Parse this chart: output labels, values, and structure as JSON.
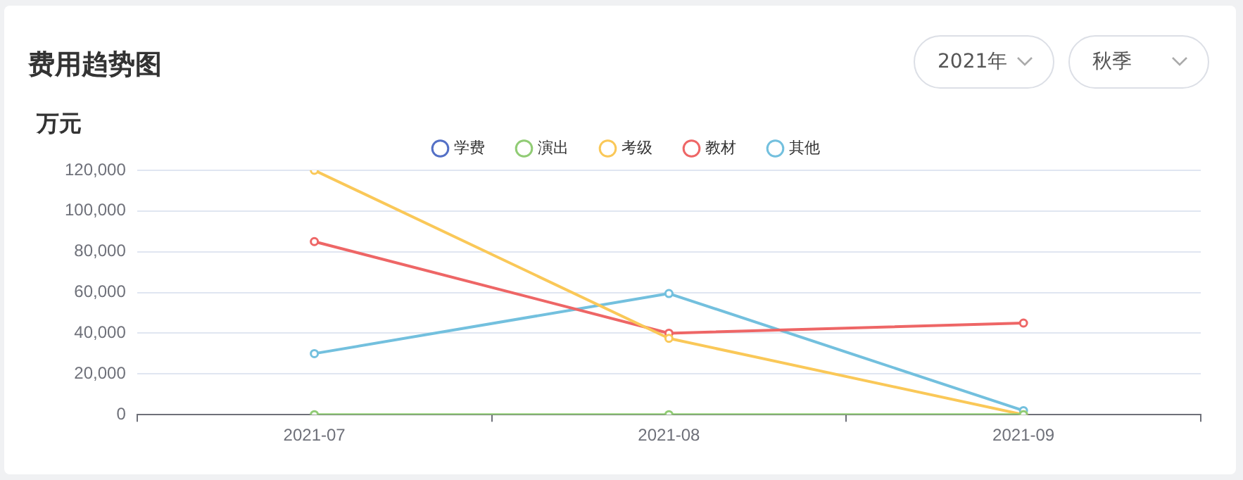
{
  "chart_data": {
    "type": "line",
    "title": "费用趋势图",
    "ylabel": "万元",
    "annotations": [
      "2021年",
      "秋季"
    ],
    "categories": [
      "2021-07",
      "2021-08",
      "2021-09"
    ],
    "series": [
      {
        "name": "学费",
        "color": "#5470c6",
        "values": [
          null,
          null,
          null
        ]
      },
      {
        "name": "演出",
        "color": "#91cc75",
        "values": [
          0,
          0,
          0
        ]
      },
      {
        "name": "考级",
        "color": "#fac858",
        "values": [
          120000,
          37500,
          0
        ]
      },
      {
        "name": "教材",
        "color": "#ee6666",
        "values": [
          85000,
          40000,
          45000
        ]
      },
      {
        "name": "其他",
        "color": "#73c0de",
        "values": [
          30000,
          59500,
          2000
        ]
      }
    ],
    "ylim": [
      0,
      120000
    ],
    "yticks": [
      0,
      {
        "value": 20000,
        "label": "20,000"
      },
      {
        "value": 40000,
        "label": "40,000"
      },
      {
        "value": 60000,
        "label": "60,000"
      },
      {
        "value": 80000,
        "label": "80,000"
      },
      {
        "value": 100000,
        "label": "100,000"
      },
      {
        "value": 120000,
        "label": "120,000"
      }
    ],
    "grid": "y",
    "legend": "top",
    "marker": "circle",
    "line_style": "solid"
  }
}
